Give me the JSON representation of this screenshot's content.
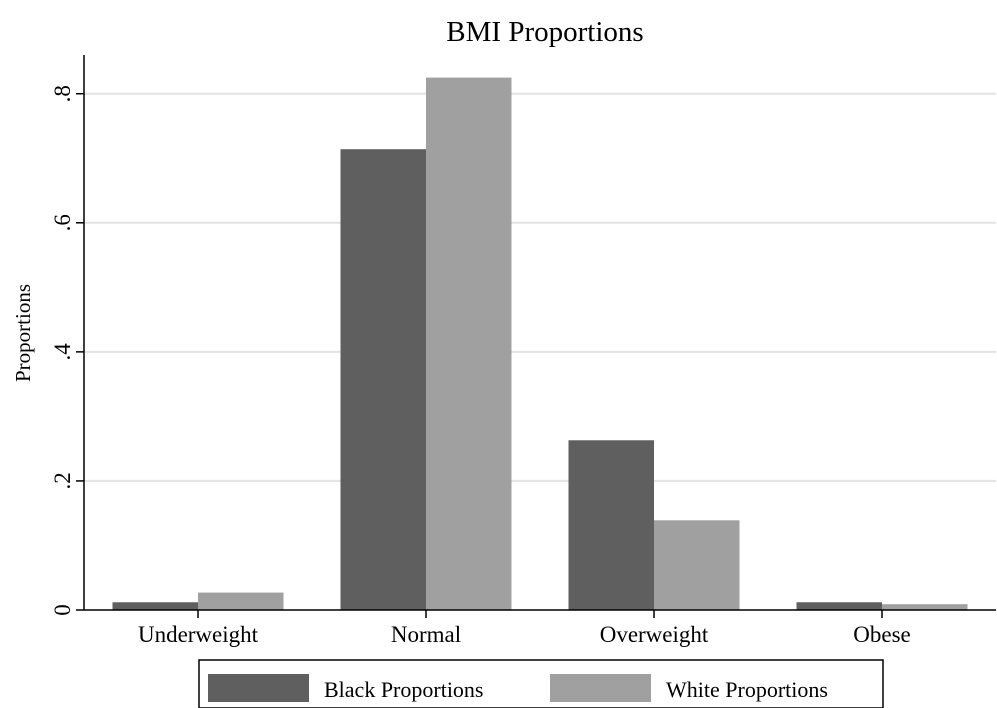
{
  "chart_data": {
    "type": "bar",
    "title": "BMI Proportions",
    "xlabel": "",
    "ylabel": "Proportions",
    "categories": [
      "Underweight",
      "Normal",
      "Overweight",
      "Obese"
    ],
    "series": [
      {
        "name": "Black Proportions",
        "values": [
          0.012,
          0.714,
          0.263,
          0.012
        ],
        "color": "#5f5f5f"
      },
      {
        "name": "White Proportions",
        "values": [
          0.027,
          0.825,
          0.139,
          0.009
        ],
        "color": "#a0a0a0"
      }
    ],
    "ylim": [
      0,
      0.86
    ],
    "yticks": [
      {
        "value": 0,
        "label": "0"
      },
      {
        "value": 0.2,
        "label": ".2"
      },
      {
        "value": 0.4,
        "label": ".4"
      },
      {
        "value": 0.6,
        "label": ".6"
      },
      {
        "value": 0.8,
        "label": ".8"
      }
    ],
    "grid": true,
    "legend_position": "bottom",
    "gridline_color": "#e3e3e3",
    "axis_color": "#000000"
  }
}
